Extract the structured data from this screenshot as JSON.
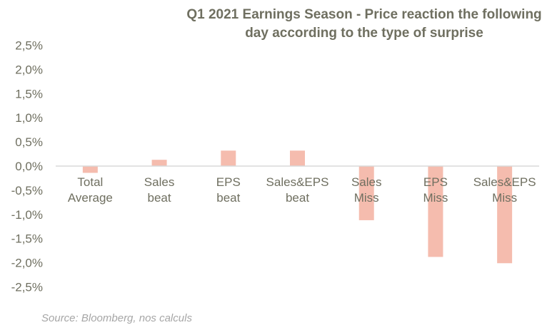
{
  "chart_data": {
    "type": "bar",
    "title_lines": [
      "Q1 2021 Earnings Season - Price reaction the following",
      "day according to the type of surprise"
    ],
    "categories": [
      [
        "Total",
        "Average"
      ],
      [
        "Sales",
        "beat"
      ],
      [
        "EPS",
        "beat"
      ],
      [
        "Sales&EPS",
        "beat"
      ],
      [
        "Sales",
        "Miss"
      ],
      [
        "EPS",
        "Miss"
      ],
      [
        "Sales&EPS",
        "Miss"
      ]
    ],
    "values": [
      -0.14,
      0.13,
      0.32,
      0.32,
      -1.12,
      -1.88,
      -2.01
    ],
    "value_unit": "%",
    "ylim": [
      -2.5,
      2.5
    ],
    "yticks": [
      "2,5%",
      "2,0%",
      "1,5%",
      "1,0%",
      "0,5%",
      "0,0%",
      "-0,5%",
      "-1,0%",
      "-1,5%",
      "-2,0%",
      "-2,5%"
    ],
    "ytick_values": [
      2.5,
      2.0,
      1.5,
      1.0,
      0.5,
      0.0,
      -0.5,
      -1.0,
      -1.5,
      -2.0,
      -2.5
    ],
    "xlabel": "",
    "ylabel": "",
    "grid": false,
    "legend": "none",
    "bar_color": "#f5bcae",
    "axis_color": "#d9d9d9",
    "text_color": "#6f6f60"
  },
  "source": "Source: Bloomberg, nos calculs"
}
